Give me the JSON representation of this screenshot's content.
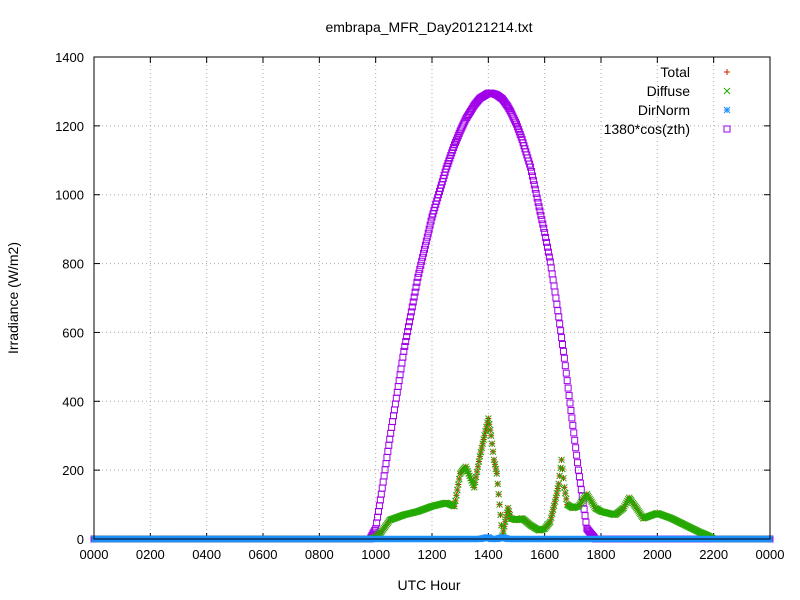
{
  "chart_data": {
    "type": "scatter",
    "title": "embrapa_MFR_Day20121214.txt",
    "xlabel": "UTC Hour",
    "ylabel": "Irradiance (W/m2)",
    "xlim": [
      0,
      24
    ],
    "ylim": [
      0,
      1400
    ],
    "grid": true,
    "legend_position": "top-right",
    "x_ticks": [
      0,
      2,
      4,
      6,
      8,
      10,
      12,
      14,
      16,
      18,
      20,
      22,
      24
    ],
    "x_tick_labels": [
      "0000",
      "0200",
      "0400",
      "0600",
      "0800",
      "1000",
      "1200",
      "1400",
      "1600",
      "1800",
      "2000",
      "2200",
      "0000"
    ],
    "y_ticks": [
      0,
      200,
      400,
      600,
      800,
      1000,
      1200,
      1400
    ],
    "y_tick_labels": [
      "0",
      "200",
      "400",
      "600",
      "800",
      "1000",
      "1200",
      "1400"
    ],
    "x": [
      0.0,
      1.0,
      2.0,
      3.0,
      4.0,
      5.0,
      6.0,
      7.0,
      8.0,
      9.0,
      9.8,
      10.0,
      10.2,
      10.5,
      11.0,
      11.5,
      12.0,
      12.5,
      12.8,
      13.0,
      13.2,
      13.5,
      13.7,
      14.0,
      14.1,
      14.2,
      14.3,
      14.5,
      14.7,
      14.8,
      15.0,
      15.2,
      15.5,
      15.8,
      16.0,
      16.2,
      16.4,
      16.5,
      16.6,
      16.7,
      16.8,
      17.0,
      17.2,
      17.5,
      17.8,
      18.0,
      18.5,
      18.8,
      19.0,
      19.3,
      19.5,
      20.0,
      20.5,
      21.0,
      21.5,
      21.8,
      22.0,
      22.2,
      22.5,
      23.0,
      24.0
    ],
    "series": [
      {
        "name": "Total",
        "marker": "plus",
        "color": "#cc2200",
        "values": [
          0,
          0,
          0,
          0,
          0,
          0,
          0,
          0,
          0,
          0,
          0,
          5,
          20,
          55,
          70,
          80,
          95,
          105,
          95,
          190,
          210,
          150,
          240,
          350,
          300,
          230,
          190,
          10,
          90,
          60,
          55,
          60,
          40,
          25,
          30,
          50,
          120,
          160,
          230,
          150,
          100,
          90,
          95,
          130,
          90,
          80,
          70,
          90,
          120,
          85,
          60,
          75,
          60,
          40,
          20,
          10,
          0,
          0,
          0,
          0,
          0
        ]
      },
      {
        "name": "Diffuse",
        "marker": "cross",
        "color": "#22aa00",
        "values": [
          0,
          0,
          0,
          0,
          0,
          0,
          0,
          0,
          0,
          0,
          0,
          5,
          20,
          55,
          70,
          80,
          95,
          105,
          95,
          190,
          210,
          150,
          240,
          350,
          300,
          230,
          190,
          10,
          90,
          60,
          55,
          60,
          40,
          25,
          30,
          50,
          120,
          160,
          230,
          150,
          100,
          90,
          95,
          130,
          90,
          80,
          70,
          90,
          120,
          85,
          60,
          75,
          60,
          40,
          20,
          10,
          0,
          0,
          0,
          0,
          0
        ]
      },
      {
        "name": "DirNorm",
        "marker": "star",
        "color": "#1e90ff",
        "values": [
          0,
          0,
          0,
          0,
          0,
          0,
          0,
          0,
          0,
          0,
          0,
          0,
          0,
          0,
          0,
          0,
          0,
          0,
          0,
          0,
          0,
          0,
          0,
          5,
          0,
          0,
          0,
          5,
          0,
          0,
          0,
          0,
          0,
          0,
          0,
          0,
          0,
          0,
          0,
          0,
          0,
          0,
          0,
          0,
          0,
          0,
          0,
          0,
          0,
          0,
          0,
          0,
          0,
          0,
          0,
          0,
          0,
          0,
          0,
          0,
          0
        ]
      },
      {
        "name": "1380*cos(zth)",
        "marker": "square",
        "color": "#a000e8",
        "values": [
          0,
          0,
          0,
          0,
          0,
          0,
          0,
          0,
          0,
          0,
          0,
          30,
          130,
          290,
          545,
          760,
          935,
          1075,
          1145,
          1185,
          1220,
          1260,
          1280,
          1295,
          1295,
          1293,
          1290,
          1278,
          1255,
          1240,
          1205,
          1160,
          1080,
          965,
          890,
          805,
          700,
          645,
          585,
          525,
          460,
          330,
          200,
          30,
          0,
          0,
          0,
          0,
          0,
          0,
          0,
          0,
          0,
          0,
          0,
          0,
          0,
          0,
          0,
          0,
          0
        ]
      }
    ]
  }
}
